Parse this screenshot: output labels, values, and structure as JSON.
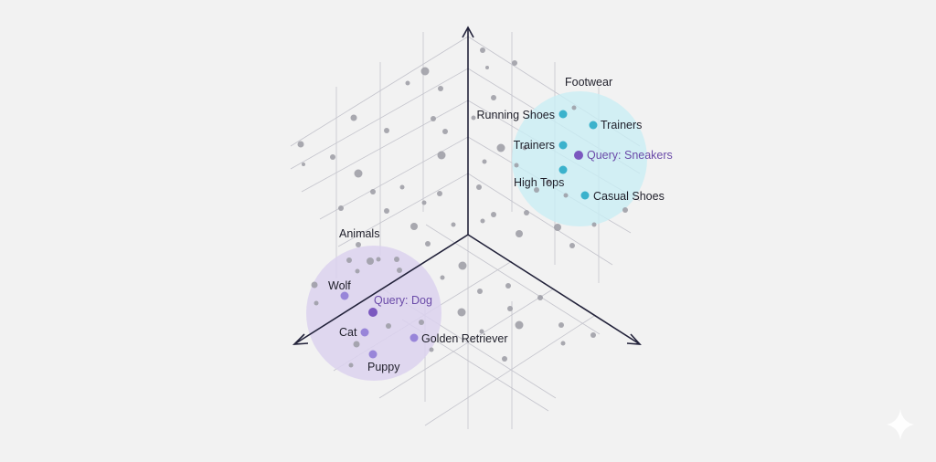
{
  "colors": {
    "background": "#f2f2f2",
    "axis": "#22223a",
    "grid": "#c4c4cc",
    "neutral_point": "#9b9ba3",
    "footwear_cluster": "#c9eef4",
    "footwear_point": "#3bb2cc",
    "animals_cluster": "#dcd2ee",
    "animals_point": "#9885d9",
    "query_point": "#7b58bf",
    "query_text": "#6a4aa8",
    "label_text": "#1f1f2a"
  },
  "clusters": {
    "footwear": {
      "title": "Footwear",
      "items": [
        {
          "label": "Running Shoes",
          "kind": "item"
        },
        {
          "label": "Trainers",
          "kind": "item"
        },
        {
          "label": "Trainers",
          "kind": "item"
        },
        {
          "label": "Query: Sneakers",
          "kind": "query"
        },
        {
          "label": "High Tops",
          "kind": "item"
        },
        {
          "label": "Casual Shoes",
          "kind": "item"
        }
      ]
    },
    "animals": {
      "title": "Animals",
      "items": [
        {
          "label": "Wolf",
          "kind": "item"
        },
        {
          "label": "Query: Dog",
          "kind": "query"
        },
        {
          "label": "Cat",
          "kind": "item"
        },
        {
          "label": "Golden Retriever",
          "kind": "item"
        },
        {
          "label": "Puppy",
          "kind": "item"
        }
      ]
    }
  },
  "icons": {
    "corner": "sparkle-icon"
  }
}
